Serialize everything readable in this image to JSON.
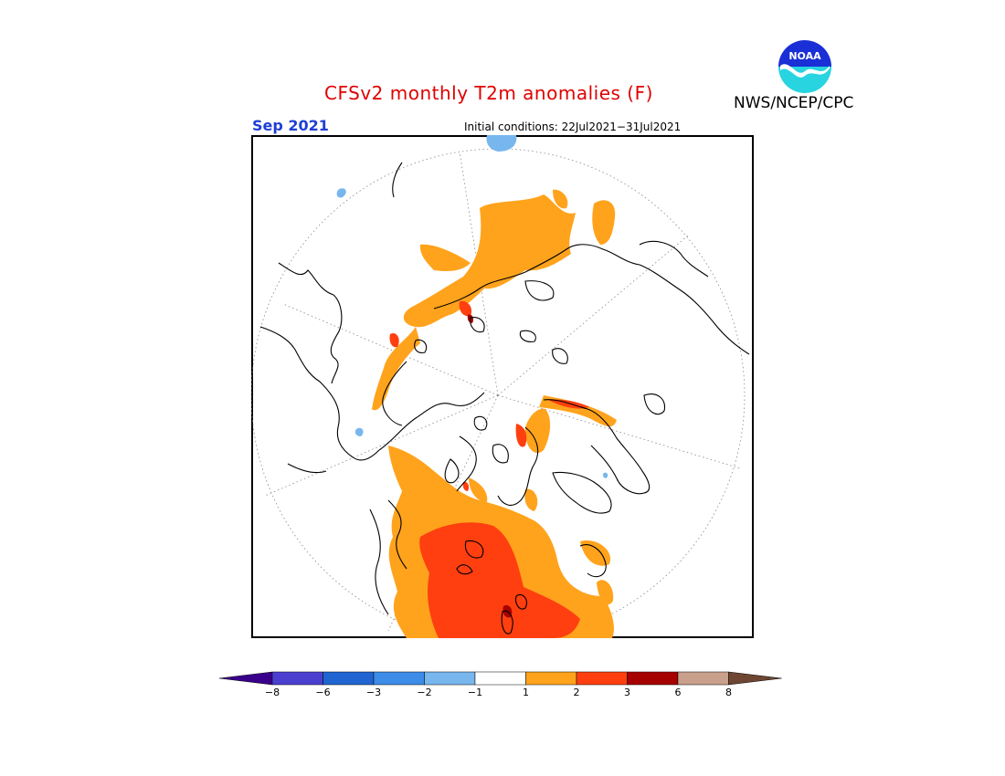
{
  "title": "CFSv2 monthly T2m anomalies (F)",
  "organization": "NWS/NCEP/CPC",
  "logo": {
    "text": "NOAA",
    "icon": "noaa-logo-icon"
  },
  "target_month": "Sep 2021",
  "initial_conditions": "Initial conditions: 22Jul2021−31Jul2021",
  "map": {
    "projection": "north polar stereographic",
    "grid": true,
    "legend_placement": "bottom"
  },
  "legend": {
    "tick_labels": [
      "−8",
      "−6",
      "−3",
      "−2",
      "−1",
      "1",
      "2",
      "3",
      "6",
      "8"
    ],
    "bins": [
      {
        "color": "#3a008c"
      },
      {
        "color": "#4b3fd0"
      },
      {
        "color": "#1f64d1"
      },
      {
        "color": "#3c8ce8"
      },
      {
        "color": "#78b6ee"
      },
      {
        "color": "#ffffff"
      },
      {
        "color": "#ffa31c"
      },
      {
        "color": "#ff3f0f"
      },
      {
        "color": "#a60000"
      },
      {
        "color": "#c8a08c"
      },
      {
        "color": "#6e4632"
      }
    ]
  },
  "colors": {
    "warm_1_2": "#ffa31c",
    "warm_2_3": "#ff3f0f",
    "warm_3_6": "#a60000",
    "cool_1_2": "#78b6ee",
    "cool_2_3": "#3c8ce8"
  }
}
